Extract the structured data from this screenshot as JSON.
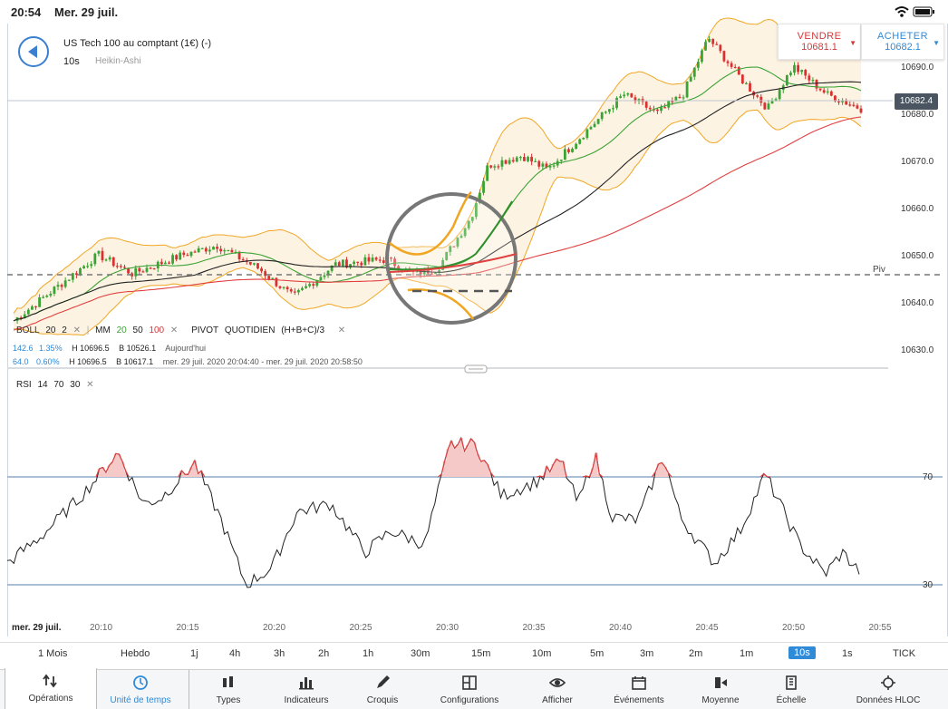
{
  "status": {
    "time": "20:54",
    "date": "Mer. 29 juil."
  },
  "instrument": {
    "name": "US Tech 100 au comptant (1€) (-)",
    "interval": "10s",
    "chart_type": "Heikin-Ashi"
  },
  "sell": {
    "label": "VENDRE",
    "price": "10681.1"
  },
  "buy": {
    "label": "ACHETER",
    "price": "10682.1"
  },
  "current_price": "10682.4",
  "pivot_label": "Piv",
  "price_axis": [
    "10690.0",
    "10680.0",
    "10670.0",
    "10660.0",
    "10650.0",
    "10640.0",
    "10630.0"
  ],
  "legend1": {
    "boll": "BOLL",
    "boll_p1": "20",
    "boll_p2": "2",
    "mm": "MM",
    "mm1": "20",
    "mm2": "50",
    "mm3": "100",
    "pivot": "PIVOT",
    "pivot_period": "QUOTIDIEN",
    "pivot_formula": "(H+B+C)/3"
  },
  "stats": [
    {
      "a": "142.6",
      "b": "1.35%",
      "h": "H 10696.5",
      "l": "B 10526.1",
      "period": "Aujourd'hui"
    },
    {
      "a": "64.0",
      "b": "0.60%",
      "h": "H 10696.5",
      "l": "B 10617.1",
      "period": "mer. 29 juil. 2020 20:04:40 - mer. 29 juil. 2020 20:58:50"
    }
  ],
  "rsi_legend": {
    "name": "RSI",
    "p1": "14",
    "p2": "70",
    "p3": "30"
  },
  "rsi_axis": {
    "upper": "70",
    "lower": "30"
  },
  "time_axis": {
    "date": "mer. 29 juil.",
    "ticks": [
      "20:10",
      "20:15",
      "20:20",
      "20:25",
      "20:30",
      "20:35",
      "20:40",
      "20:45",
      "20:50",
      "20:55"
    ]
  },
  "timeframes": [
    "1 Mois",
    "Hebdo",
    "1j",
    "4h",
    "3h",
    "2h",
    "1h",
    "30m",
    "15m",
    "10m",
    "5m",
    "3m",
    "2m",
    "1m",
    "10s",
    "1s",
    "TICK"
  ],
  "active_timeframe": "10s",
  "toolbar": [
    "Opérations",
    "Unité de temps",
    "Types",
    "Indicateurs",
    "Croquis",
    "Configurations",
    "Afficher",
    "Événements",
    "Moyenne",
    "Échelle",
    "Données HLOC"
  ],
  "colors": {
    "up": "#3aa335",
    "down": "#d93030",
    "boll": "#f0a623",
    "ma20": "#3aa335",
    "ma50": "#222222",
    "ma100": "#e04040",
    "accent": "#2f8ad8"
  }
}
